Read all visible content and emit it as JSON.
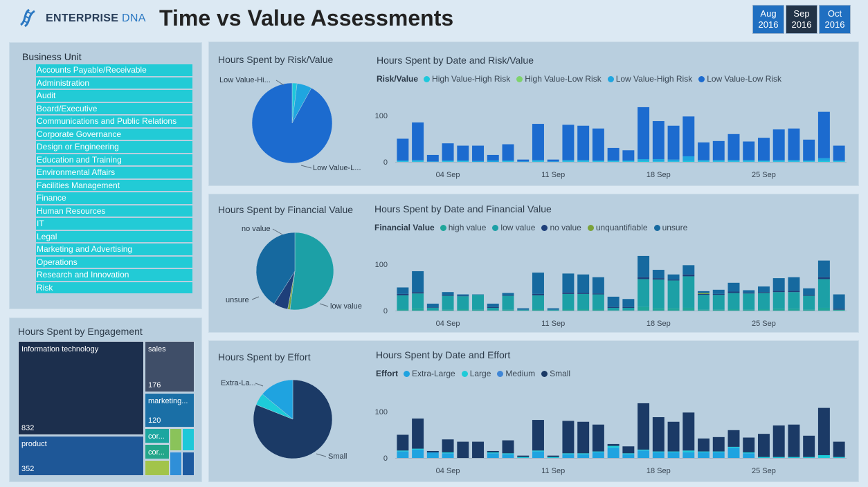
{
  "header": {
    "logo_text_1": "ENTERPRISE",
    "logo_text_2": "DNA",
    "title": "Time vs Value Assessments",
    "months": [
      {
        "m": "Aug",
        "y": "2016",
        "state": "active"
      },
      {
        "m": "Sep",
        "y": "2016",
        "state": "selected"
      },
      {
        "m": "Oct",
        "y": "2016",
        "state": "active"
      }
    ]
  },
  "business_unit": {
    "title": "Business Unit",
    "items": [
      "Accounts Payable/Receivable",
      "Administration",
      "Audit",
      "Board/Executive",
      "Communications and Public Relations",
      "Corporate Governance",
      "Design or Engineering",
      "Education and Training",
      "Environmental Affairs",
      "Facilities Management",
      "Finance",
      "Human Resources",
      "IT",
      "Legal",
      "Marketing and Advertising",
      "Operations",
      "Research and Innovation",
      "Risk"
    ]
  },
  "engagement": {
    "title": "Hours Spent by Engagement",
    "cells": [
      {
        "label": "Information technology",
        "value": "832",
        "color": "#1c2f4d"
      },
      {
        "label": "product",
        "value": "352",
        "color": "#1e5797"
      },
      {
        "label": "sales",
        "value": "176",
        "color": "#3f4e68"
      },
      {
        "label": "marketing...",
        "value": "120",
        "color": "#1a6fa6"
      },
      {
        "label": "cor...",
        "value": "",
        "color": "#1ca6a0"
      },
      {
        "label": "cor...",
        "value": "",
        "color": "#23a68a"
      },
      {
        "label": "",
        "value": "",
        "color": "#8ac35a"
      },
      {
        "label": "",
        "value": "",
        "color": "#1ec8d8"
      },
      {
        "label": "",
        "value": "",
        "color": "#2f8fd8"
      },
      {
        "label": "",
        "value": "",
        "color": "#1d5aa0"
      },
      {
        "label": "",
        "value": "",
        "color": "#a2c44a"
      }
    ]
  },
  "charts": [
    {
      "id": "risk",
      "pie_title": "Hours Spent by Risk/Value",
      "bar_title": "Hours Spent by Date and Risk/Value",
      "legend_title": "Risk/Value",
      "legend": [
        {
          "name": "High Value-High Risk",
          "color": "#1ec8dc"
        },
        {
          "name": "High Value-Low Risk",
          "color": "#7fd36d"
        },
        {
          "name": "Low Value-High Risk",
          "color": "#1fa6e0"
        },
        {
          "name": "Low Value-Low Risk",
          "color": "#1c6bcf"
        }
      ],
      "pie_labels": [
        "Low Value-Hi...",
        "Low Value-L..."
      ]
    },
    {
      "id": "fin",
      "pie_title": "Hours Spent by Financial Value",
      "bar_title": "Hours Spent by Date and Financial Value",
      "legend_title": "Financial Value",
      "legend": [
        {
          "name": "high value",
          "color": "#1fa69a"
        },
        {
          "name": "low value",
          "color": "#1ca0a6"
        },
        {
          "name": "no value",
          "color": "#1e3f7a"
        },
        {
          "name": "unquantifiable",
          "color": "#7ba23a"
        },
        {
          "name": "unsure",
          "color": "#16699f"
        }
      ],
      "pie_labels": [
        "no value",
        "unsure",
        "low value"
      ]
    },
    {
      "id": "eff",
      "pie_title": "Hours Spent by Effort",
      "bar_title": "Hours Spent by Date and Effort",
      "legend_title": "Effort",
      "legend": [
        {
          "name": "Extra-Large",
          "color": "#1fa3e0"
        },
        {
          "name": "Large",
          "color": "#1ecbd8"
        },
        {
          "name": "Medium",
          "color": "#3f86d6"
        },
        {
          "name": "Small",
          "color": "#1b3a66"
        }
      ],
      "pie_labels": [
        "Extra-La...",
        "Small"
      ]
    }
  ],
  "chart_data": [
    {
      "type": "pie",
      "title": "Hours Spent by Risk/Value",
      "categories": [
        "High Value-High Risk",
        "Low Value-High Risk",
        "Low Value-Low Risk"
      ],
      "values": [
        2,
        6,
        92
      ],
      "colors": [
        "#1ec8dc",
        "#1fa6e0",
        "#1c6bcf"
      ]
    },
    {
      "type": "pie",
      "title": "Hours Spent by Financial Value",
      "categories": [
        "low value",
        "unquantifiable",
        "no value",
        "unsure"
      ],
      "values": [
        52,
        1,
        6,
        41
      ],
      "colors": [
        "#1ca0a6",
        "#7ba23a",
        "#1e3f7a",
        "#16699f"
      ]
    },
    {
      "type": "pie",
      "title": "Hours Spent by Effort",
      "categories": [
        "Small",
        "Large",
        "Extra-Large"
      ],
      "values": [
        81,
        5,
        14
      ],
      "colors": [
        "#1b3a66",
        "#1ecbd8",
        "#1fa3e0"
      ]
    },
    {
      "type": "bar",
      "title": "Hours Spent by Date and Risk/Value",
      "x_ticks": [
        "04 Sep",
        "11 Sep",
        "18 Sep",
        "25 Sep"
      ],
      "y_ticks": [
        "0",
        "100"
      ],
      "ylim": [
        0,
        120
      ],
      "totals": [
        50,
        85,
        15,
        40,
        35,
        35,
        15,
        38,
        5,
        82,
        5,
        80,
        78,
        72,
        30,
        25,
        118,
        88,
        78,
        98,
        42,
        45,
        60,
        44,
        52,
        70,
        72,
        48,
        108,
        35
      ],
      "series": [
        {
          "name": "High Value-High Risk",
          "color": "#1ec8dc",
          "values": [
            1,
            1,
            0,
            1,
            1,
            0,
            0,
            1,
            0,
            1,
            0,
            1,
            1,
            1,
            1,
            1,
            2,
            1,
            1,
            2,
            1,
            1,
            1,
            1,
            1,
            1,
            1,
            1,
            2,
            1
          ]
        },
        {
          "name": "Low Value-High Risk",
          "color": "#1fa6e0",
          "values": [
            2,
            3,
            1,
            2,
            2,
            2,
            3,
            2,
            1,
            3,
            1,
            3,
            3,
            2,
            2,
            2,
            4,
            5,
            4,
            10,
            3,
            3,
            3,
            3,
            2,
            3,
            3,
            2,
            6,
            2
          ]
        },
        {
          "name": "Low Value-Low Risk",
          "color": "#1c6bcf",
          "values": [
            47,
            81,
            14,
            37,
            32,
            33,
            12,
            35,
            4,
            78,
            4,
            76,
            74,
            69,
            27,
            22,
            112,
            82,
            73,
            86,
            38,
            41,
            56,
            40,
            49,
            66,
            68,
            45,
            100,
            32
          ]
        }
      ]
    },
    {
      "type": "bar",
      "title": "Hours Spent by Date and Financial Value",
      "x_ticks": [
        "04 Sep",
        "11 Sep",
        "18 Sep",
        "25 Sep"
      ],
      "y_ticks": [
        "0",
        "100"
      ],
      "ylim": [
        0,
        120
      ],
      "totals": [
        50,
        85,
        15,
        40,
        35,
        35,
        15,
        38,
        5,
        82,
        5,
        80,
        78,
        72,
        30,
        25,
        118,
        88,
        78,
        98,
        42,
        45,
        60,
        44,
        52,
        70,
        72,
        48,
        108,
        35
      ],
      "series": [
        {
          "name": "high value",
          "color": "#1fa69a",
          "values": [
            3,
            5,
            1,
            2,
            3,
            2,
            1,
            2,
            0,
            3,
            0,
            3,
            3,
            3,
            1,
            1,
            8,
            5,
            5,
            6,
            2,
            2,
            3,
            2,
            3,
            4,
            4,
            2,
            6,
            2
          ]
        },
        {
          "name": "low value",
          "color": "#1ca0a6",
          "values": [
            30,
            32,
            5,
            30,
            28,
            32,
            5,
            30,
            2,
            30,
            2,
            33,
            33,
            32,
            5,
            5,
            60,
            62,
            60,
            68,
            32,
            32,
            35,
            35,
            35,
            36,
            36,
            30,
            62,
            0
          ]
        },
        {
          "name": "no value",
          "color": "#1e3f7a",
          "values": [
            3,
            3,
            1,
            2,
            1,
            0,
            2,
            1,
            0,
            3,
            0,
            3,
            2,
            2,
            2,
            2,
            4,
            3,
            2,
            4,
            2,
            2,
            3,
            2,
            2,
            3,
            3,
            2,
            4,
            2
          ]
        },
        {
          "name": "unquantifiable",
          "color": "#7ba23a",
          "values": [
            0,
            0,
            0,
            0,
            0,
            0,
            0,
            0,
            0,
            0,
            0,
            0,
            0,
            0,
            0,
            0,
            0,
            0,
            0,
            0,
            2,
            0,
            0,
            0,
            0,
            0,
            0,
            0,
            0,
            0
          ]
        },
        {
          "name": "unsure",
          "color": "#16699f",
          "values": [
            14,
            45,
            8,
            6,
            3,
            1,
            7,
            5,
            3,
            46,
            3,
            41,
            40,
            35,
            22,
            17,
            46,
            18,
            11,
            20,
            4,
            9,
            19,
            5,
            12,
            27,
            29,
            14,
            36,
            31
          ]
        }
      ]
    },
    {
      "type": "bar",
      "title": "Hours Spent by Date and Effort",
      "x_ticks": [
        "04 Sep",
        "11 Sep",
        "18 Sep",
        "25 Sep"
      ],
      "y_ticks": [
        "0",
        "100"
      ],
      "ylim": [
        0,
        120
      ],
      "totals": [
        50,
        85,
        15,
        40,
        35,
        35,
        15,
        38,
        5,
        82,
        5,
        80,
        78,
        72,
        30,
        25,
        118,
        88,
        78,
        98,
        42,
        45,
        60,
        44,
        52,
        70,
        72,
        48,
        108,
        35
      ],
      "series": [
        {
          "name": "Extra-Large",
          "color": "#1fa3e0",
          "values": [
            14,
            18,
            12,
            10,
            0,
            0,
            10,
            8,
            0,
            14,
            0,
            8,
            8,
            12,
            22,
            8,
            16,
            12,
            12,
            12,
            12,
            12,
            22,
            10,
            0,
            0,
            0,
            0,
            0,
            0
          ]
        },
        {
          "name": "Large",
          "color": "#1ecbd8",
          "values": [
            2,
            2,
            0,
            2,
            0,
            0,
            2,
            2,
            2,
            2,
            2,
            2,
            2,
            2,
            4,
            2,
            2,
            2,
            2,
            4,
            2,
            2,
            2,
            2,
            2,
            2,
            2,
            2,
            6,
            2
          ]
        },
        {
          "name": "Medium",
          "color": "#3f86d6",
          "values": [
            0,
            0,
            0,
            0,
            0,
            0,
            0,
            0,
            0,
            0,
            0,
            0,
            0,
            0,
            0,
            0,
            0,
            0,
            0,
            0,
            0,
            0,
            0,
            0,
            0,
            0,
            0,
            0,
            0,
            0
          ]
        },
        {
          "name": "Small",
          "color": "#1b3a66",
          "values": [
            34,
            65,
            3,
            28,
            35,
            35,
            3,
            28,
            3,
            66,
            3,
            70,
            68,
            58,
            4,
            15,
            100,
            74,
            64,
            82,
            28,
            31,
            36,
            32,
            50,
            68,
            70,
            46,
            102,
            33
          ]
        }
      ]
    }
  ]
}
